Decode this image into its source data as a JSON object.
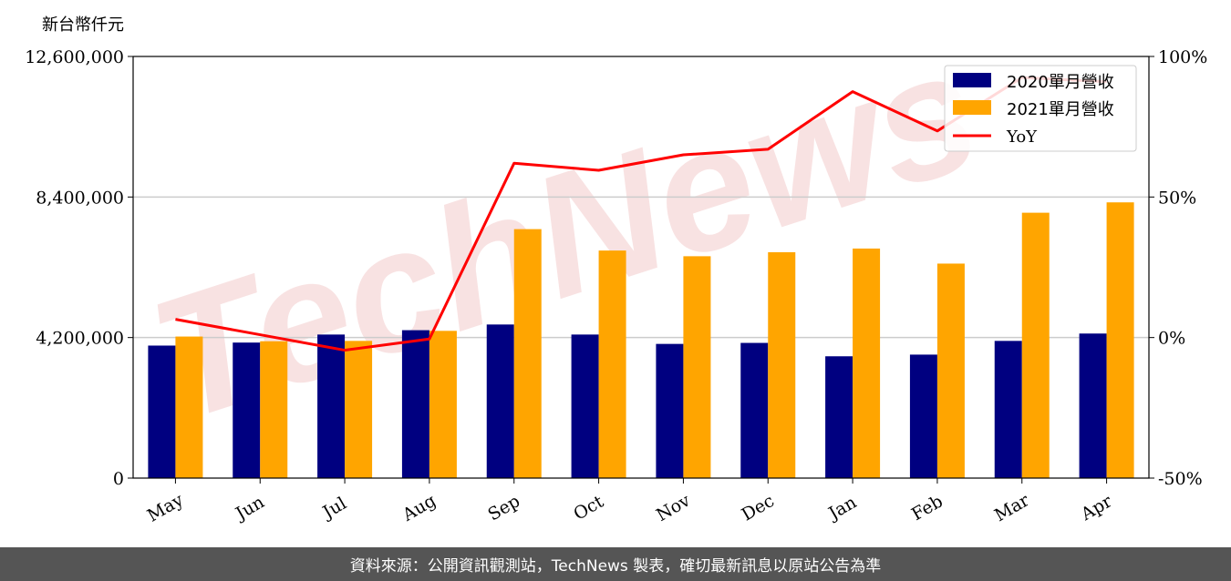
{
  "unit_label": "新台幣仟元",
  "footer_text": "資料來源：公開資訊觀測站，TechNews 製表，確切最新訊息以原站公告為準",
  "watermark_text": "TechNews",
  "colors": {
    "series_2020": "#000080",
    "series_2021": "#ffa500",
    "yoy": "#ff0000",
    "footer_bg": "#555555",
    "watermark": "#f2c7c7"
  },
  "chart_data": {
    "type": "bar",
    "categories": [
      "May",
      "Jun",
      "Jul",
      "Aug",
      "Sep",
      "Oct",
      "Nov",
      "Dec",
      "Jan",
      "Feb",
      "Mar",
      "Apr"
    ],
    "series": [
      {
        "name": "2020單月營收",
        "values": [
          3960000,
          4050000,
          4290000,
          4420000,
          4590000,
          4290000,
          4010000,
          4040000,
          3640000,
          3690000,
          4100000,
          4320000
        ]
      },
      {
        "name": "2021單月營收",
        "values": [
          4230000,
          4090000,
          4100000,
          4400000,
          7440000,
          6800000,
          6630000,
          6750000,
          6860000,
          6410000,
          7930000,
          8240000
        ]
      }
    ],
    "line_series": {
      "name": "YoY",
      "values": [
        6.5,
        1,
        -4.5,
        -0.5,
        62,
        59.5,
        65,
        67,
        87.5,
        73.5,
        92.5,
        91
      ]
    },
    "ylim": [
      0,
      12600000
    ],
    "yticks": [
      "0",
      "4,200,000",
      "8,400,000",
      "12,600,000"
    ],
    "ytick_values": [
      0,
      4200000,
      8400000,
      12600000
    ],
    "y2lim": [
      -50,
      100
    ],
    "y2ticks": [
      "-50%",
      "0%",
      "50%",
      "100%"
    ],
    "y2tick_values": [
      -50,
      0,
      50,
      100
    ],
    "grid": "horizontal",
    "legend_position": "top-right"
  }
}
